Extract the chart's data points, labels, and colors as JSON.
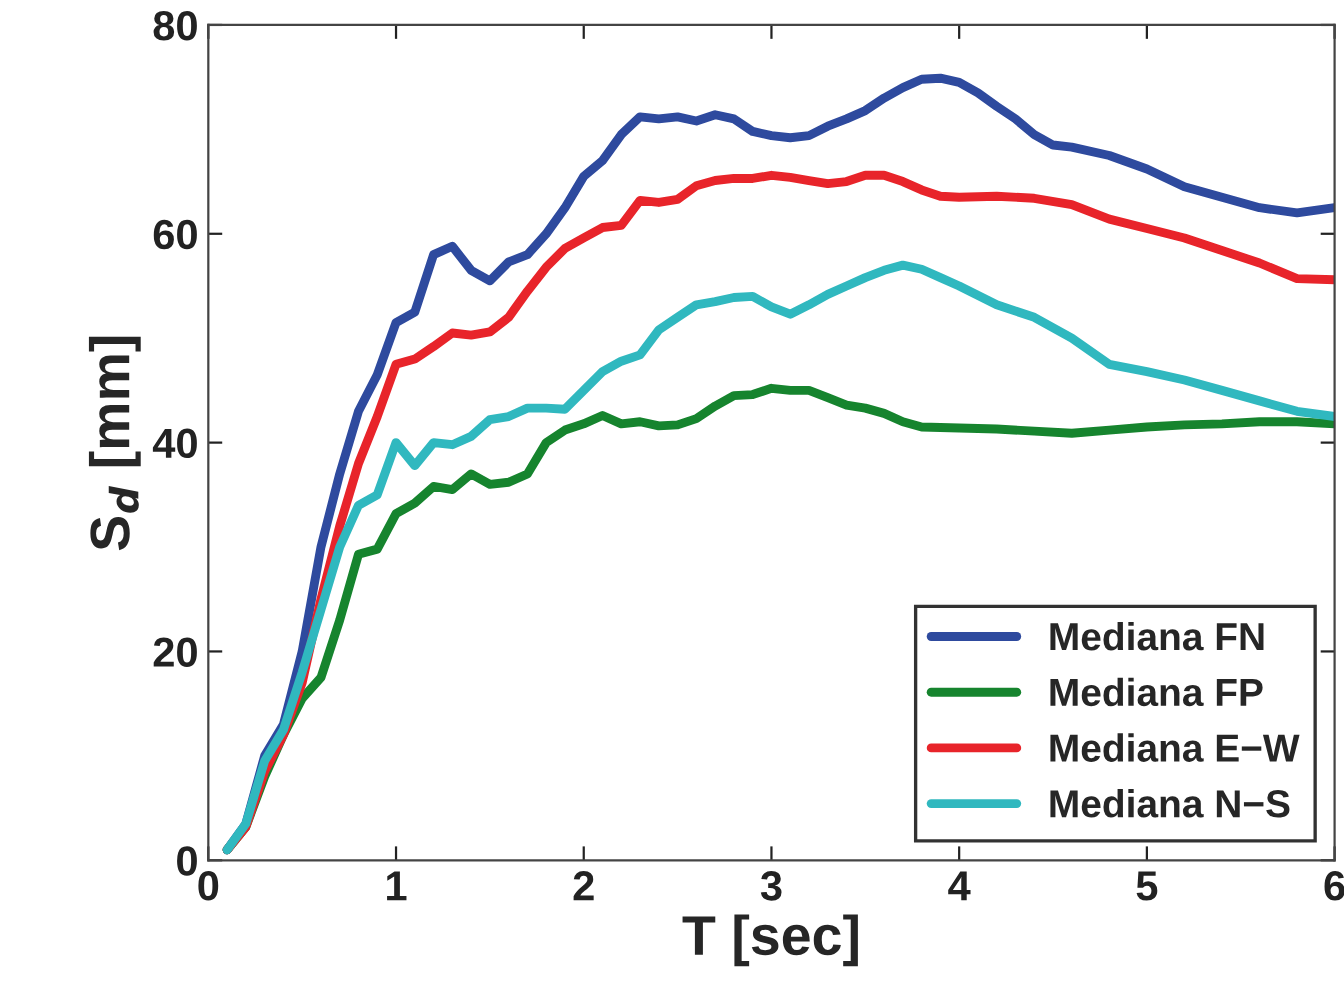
{
  "chart_data": {
    "type": "line",
    "xlabel": "T [sec]",
    "ylabel": "S$_{d}$ [mm]",
    "xlim": [
      0,
      6
    ],
    "ylim": [
      0,
      80
    ],
    "xticks": [
      0,
      1,
      2,
      3,
      4,
      5,
      6
    ],
    "yticks": [
      0,
      20,
      40,
      60,
      80
    ],
    "grid": false,
    "legend": "bottom right",
    "marker": "none",
    "line_style": "solid",
    "series": [
      {
        "name": "Mediana FN",
        "color": "#2e4a9e",
        "x": [
          0.1,
          0.2,
          0.3,
          0.4,
          0.5,
          0.6,
          0.7,
          0.8,
          0.9,
          1.0,
          1.1,
          1.2,
          1.3,
          1.4,
          1.5,
          1.6,
          1.7,
          1.8,
          1.9,
          2.0,
          2.1,
          2.2,
          2.3,
          2.4,
          2.5,
          2.6,
          2.7,
          2.8,
          2.9,
          3.0,
          3.1,
          3.2,
          3.3,
          3.4,
          3.5,
          3.6,
          3.7,
          3.8,
          3.9,
          4.0,
          4.1,
          4.2,
          4.3,
          4.4,
          4.5,
          4.6,
          4.8,
          5.0,
          5.2,
          5.4,
          5.6,
          5.8,
          6.0
        ],
        "values": [
          1,
          3.5,
          10,
          13,
          20,
          30,
          37,
          43,
          46.5,
          51.5,
          52.5,
          58,
          58.8,
          56.5,
          55.5,
          57.3,
          58,
          60,
          62.5,
          65.5,
          67,
          69.5,
          71.2,
          71,
          71.2,
          70.8,
          71.4,
          71,
          69.8,
          69.4,
          69.2,
          69.4,
          70.3,
          71,
          71.8,
          73,
          74,
          74.8,
          74.9,
          74.5,
          73.5,
          72.2,
          71,
          69.5,
          68.5,
          68.3,
          67.5,
          66.2,
          64.5,
          63.5,
          62.5,
          62,
          62.5
        ]
      },
      {
        "name": "Mediana FP",
        "color": "#16842e",
        "x": [
          0.1,
          0.2,
          0.3,
          0.4,
          0.5,
          0.6,
          0.7,
          0.8,
          0.9,
          1.0,
          1.1,
          1.2,
          1.3,
          1.4,
          1.5,
          1.6,
          1.7,
          1.8,
          1.9,
          2.0,
          2.1,
          2.2,
          2.3,
          2.4,
          2.5,
          2.6,
          2.7,
          2.8,
          2.9,
          3.0,
          3.1,
          3.2,
          3.3,
          3.4,
          3.5,
          3.6,
          3.7,
          3.8,
          4.0,
          4.2,
          4.4,
          4.6,
          4.8,
          5.0,
          5.2,
          5.4,
          5.6,
          5.8,
          6.0
        ],
        "values": [
          1,
          3.2,
          8,
          12,
          15.5,
          17.5,
          23,
          29.3,
          29.8,
          33.2,
          34.2,
          35.8,
          35.5,
          37,
          36,
          36.2,
          37,
          40,
          41.2,
          41.8,
          42.6,
          41.8,
          42,
          41.6,
          41.7,
          42.3,
          43.5,
          44.5,
          44.6,
          45.2,
          45,
          45,
          44.3,
          43.6,
          43.3,
          42.8,
          42,
          41.5,
          41.4,
          41.3,
          41.1,
          40.9,
          41.2,
          41.5,
          41.7,
          41.8,
          42,
          42,
          41.8
        ]
      },
      {
        "name": "Mediana E−W",
        "color": "#e8242a",
        "x": [
          0.1,
          0.2,
          0.3,
          0.4,
          0.5,
          0.6,
          0.7,
          0.8,
          0.9,
          1.0,
          1.1,
          1.2,
          1.3,
          1.4,
          1.5,
          1.6,
          1.7,
          1.8,
          1.9,
          2.0,
          2.1,
          2.2,
          2.3,
          2.4,
          2.5,
          2.6,
          2.7,
          2.8,
          2.9,
          3.0,
          3.1,
          3.2,
          3.3,
          3.4,
          3.5,
          3.6,
          3.7,
          3.8,
          3.9,
          4.0,
          4.2,
          4.4,
          4.6,
          4.8,
          5.0,
          5.2,
          5.4,
          5.6,
          5.8,
          6.0
        ],
        "values": [
          1,
          3.2,
          8.5,
          12,
          17,
          25,
          32,
          38,
          42.5,
          47.5,
          48,
          49.2,
          50.5,
          50.3,
          50.6,
          52,
          54.5,
          56.8,
          58.6,
          59.6,
          60.6,
          60.8,
          63.2,
          63,
          63.3,
          64.6,
          65.1,
          65.3,
          65.3,
          65.6,
          65.4,
          65.1,
          64.8,
          65,
          65.6,
          65.6,
          65,
          64.2,
          63.6,
          63.5,
          63.6,
          63.4,
          62.8,
          61.4,
          60.5,
          59.6,
          58.4,
          57.2,
          55.7,
          55.6
        ]
      },
      {
        "name": "Mediana N−S",
        "color": "#30b8bf",
        "x": [
          0.1,
          0.2,
          0.3,
          0.4,
          0.5,
          0.6,
          0.7,
          0.8,
          0.9,
          1.0,
          1.1,
          1.2,
          1.3,
          1.4,
          1.5,
          1.6,
          1.7,
          1.8,
          1.9,
          2.0,
          2.1,
          2.2,
          2.3,
          2.4,
          2.5,
          2.6,
          2.7,
          2.8,
          2.9,
          3.0,
          3.1,
          3.2,
          3.3,
          3.4,
          3.5,
          3.6,
          3.7,
          3.8,
          3.9,
          4.0,
          4.2,
          4.4,
          4.6,
          4.8,
          5.0,
          5.2,
          5.4,
          5.6,
          5.8,
          6.0
        ],
        "values": [
          1,
          3.5,
          9.5,
          12.5,
          18,
          24,
          30,
          34,
          35,
          40,
          37.8,
          40,
          39.8,
          40.6,
          42.2,
          42.5,
          43.3,
          43.3,
          43.2,
          45,
          46.8,
          47.8,
          48.4,
          50.8,
          52,
          53.2,
          53.5,
          53.9,
          54,
          53,
          52.3,
          53.2,
          54.2,
          55,
          55.8,
          56.5,
          57,
          56.6,
          55.8,
          55,
          53.2,
          52,
          50,
          47.5,
          46.8,
          46,
          45,
          44,
          43,
          42.5
        ]
      }
    ]
  }
}
